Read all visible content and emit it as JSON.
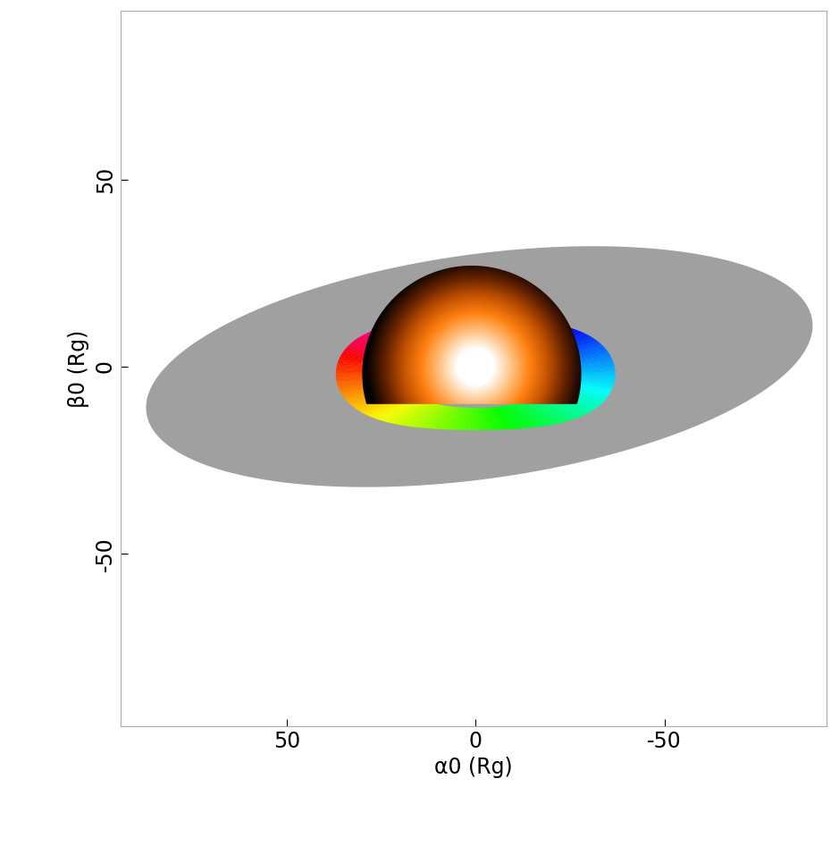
{
  "chart_data": {
    "type": "image",
    "xlabel": "α0 (Rg)",
    "ylabel": "β0 (Rg)",
    "xlim": [
      94,
      -93
    ],
    "ylim": [
      -96,
      95
    ],
    "xticks": [
      50,
      0,
      -50
    ],
    "yticks": [
      -50,
      0,
      50
    ],
    "outer_disk": {
      "center": [
        -1,
        0
      ],
      "semi_axes": [
        89,
        30
      ],
      "tilt": 8,
      "color": "#a0a0a0"
    },
    "ring": {
      "center": [
        0,
        -2
      ],
      "outer_semi_axes": [
        37,
        17
      ],
      "inner_semi_axes": [
        22,
        9
      ]
    },
    "sphere": {
      "center": [
        1,
        -2
      ],
      "radius": 29,
      "base": -10,
      "hot_spot": [
        0,
        0
      ]
    }
  }
}
